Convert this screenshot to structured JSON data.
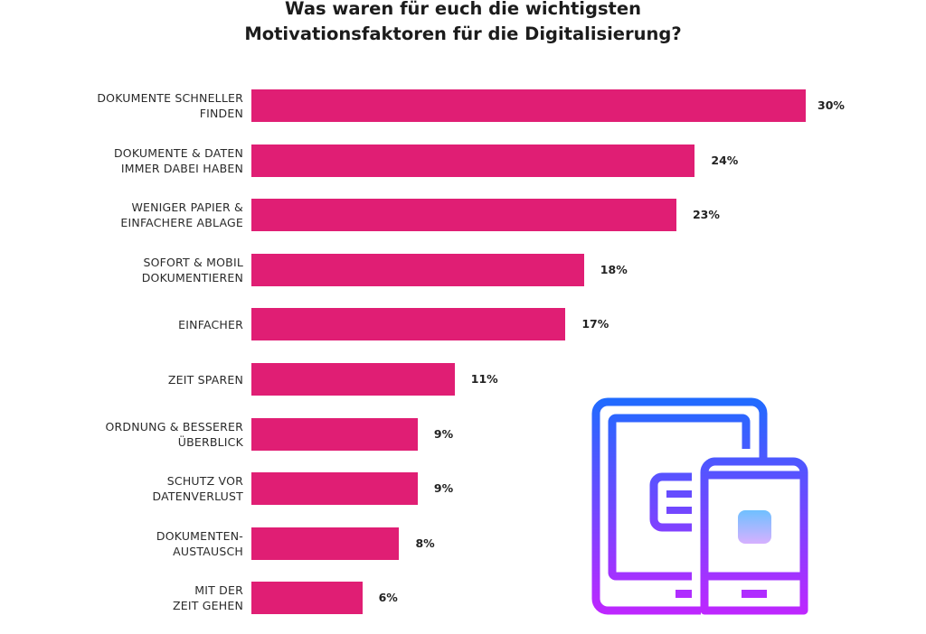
{
  "chart_data": {
    "type": "bar",
    "orientation": "horizontal",
    "title": [
      "Was waren für euch die wichtigsten",
      "Motivationsfaktoren für die Digitalisierung?"
    ],
    "categories": [
      [
        "DOKUMENTE SCHNELLER",
        "FINDEN"
      ],
      [
        "DOKUMENTE & DATEN",
        "IMMER DABEI HABEN"
      ],
      [
        "WENIGER PAPIER &",
        "EINFACHERE ABLAGE"
      ],
      [
        "SOFORT & MOBIL",
        "DOKUMENTIEREN"
      ],
      [
        "EINFACHER"
      ],
      [
        "ZEIT SPAREN"
      ],
      [
        "ORDNUNG & BESSERER",
        "ÜBERBLICK"
      ],
      [
        "SCHUTZ VOR",
        "DATENVERLUST"
      ],
      [
        "DOKUMENTEN-",
        "AUSTAUSCH"
      ],
      [
        "MIT DER",
        "ZEIT GEHEN"
      ]
    ],
    "values": [
      30,
      24,
      23,
      18,
      17,
      11,
      9,
      9,
      8,
      6
    ],
    "value_labels": [
      "30%",
      "24%",
      "23%",
      "18%",
      "17%",
      "11%",
      "9%",
      "9%",
      "8%",
      "6%"
    ],
    "unit": "%",
    "bar_color": "#e01e74",
    "grid": false,
    "legend": "none"
  },
  "decoration": {
    "icon": "tablet-and-smartphone-icon",
    "gradient_colors": [
      "#1f6bff",
      "#c026ff"
    ]
  }
}
